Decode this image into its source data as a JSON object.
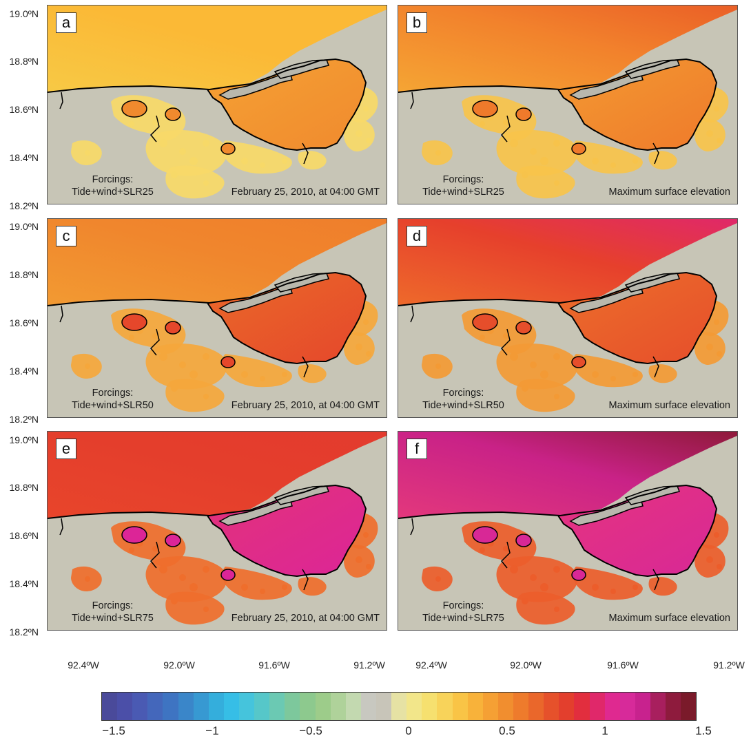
{
  "panels": [
    {
      "letter": "a",
      "forcing_line1": "Forcings:",
      "forcing_line2": "Tide+wind+SLR25",
      "stamp": "February 25, 2010, at 04:00 GMT",
      "sea": [
        "#f7c945",
        "#fbb936",
        "#fbb936"
      ],
      "lagoon": [
        "#f5a134",
        "#f08a2e"
      ],
      "land": "#f7d968"
    },
    {
      "letter": "b",
      "forcing_line1": "Forcings:",
      "forcing_line2": "Tide+wind+SLR25",
      "stamp": "Maximum surface elevation",
      "sea": [
        "#f5a534",
        "#f2822c",
        "#ea5f27"
      ],
      "lagoon": [
        "#f39a32",
        "#ef7a2b"
      ],
      "land": "#f7c34b"
    },
    {
      "letter": "c",
      "forcing_line1": "Forcings:",
      "forcing_line2": "Tide+wind+SLR50",
      "stamp": "February 25, 2010, at 04:00 GMT",
      "sea": [
        "#f29a32",
        "#f0862d",
        "#ef7e2b"
      ],
      "lagoon": [
        "#ea6a2a",
        "#e5472b"
      ],
      "land": "#f5a73c"
    },
    {
      "letter": "d",
      "forcing_line1": "Forcings:",
      "forcing_line2": "Tide+wind+SLR50",
      "stamp": "Maximum surface elevation",
      "sea": [
        "#ee6a2b",
        "#e6402c",
        "#e0286a"
      ],
      "lagoon": [
        "#ec6f2b",
        "#e64e2b"
      ],
      "land": "#f39a35"
    },
    {
      "letter": "e",
      "forcing_line1": "Forcings:",
      "forcing_line2": "Tide+wind+SLR75",
      "stamp": "February 25, 2010, at 04:00 GMT",
      "sea": [
        "#e8452b",
        "#e43e2c",
        "#e33b2e"
      ],
      "lagoon": [
        "#e2337a",
        "#dc2597"
      ],
      "land": "#ef6e2c"
    },
    {
      "letter": "f",
      "forcing_line1": "Forcings:",
      "forcing_line2": "Tide+wind+SLR75",
      "stamp": "Maximum surface elevation",
      "sea": [
        "#e3387c",
        "#c92287",
        "#8f1a3a"
      ],
      "lagoon": [
        "#e5347f",
        "#d82896"
      ],
      "land": "#ec5d2b"
    }
  ],
  "map_colors": {
    "land_bg": "#c7c5b6",
    "island": "#b9b8ad",
    "coast": "#000000"
  },
  "y_ticks": [
    "19.0ºN",
    "18.8ºN",
    "18.6ºN",
    "18.4ºN",
    "18.2ºN"
  ],
  "x_ticks": [
    "92.4ºW",
    "92.0ºW",
    "91.6ºW",
    "91.2ºW"
  ],
  "colorbar": {
    "min": -1.5,
    "max": 1.5,
    "tick_labels": [
      "−1.5",
      "−1",
      "−0.5",
      "0",
      "0.5",
      "1",
      "1.5"
    ],
    "colors": [
      "#4a4a9a",
      "#4b4fa8",
      "#4a5ab3",
      "#4467bb",
      "#3e74c2",
      "#3a86c9",
      "#3799d2",
      "#34aedc",
      "#36bee6",
      "#45c4dc",
      "#56c7c9",
      "#6bc9b3",
      "#7dc89c",
      "#8dc98e",
      "#9dcc8a",
      "#afd29a",
      "#c3d9b0",
      "#c8c8c0",
      "#c8c5b9",
      "#e6e2a4",
      "#f2e68a",
      "#f6e06f",
      "#f8d35a",
      "#f9c446",
      "#f8b23a",
      "#f5a034",
      "#f18e2f",
      "#ee7b2c",
      "#ea672b",
      "#e6512b",
      "#e33f2d",
      "#e22e3e",
      "#e0286a",
      "#df2990",
      "#d72a9a",
      "#c8228e",
      "#a81f5e",
      "#8e1b3d",
      "#7a1a2a"
    ]
  }
}
